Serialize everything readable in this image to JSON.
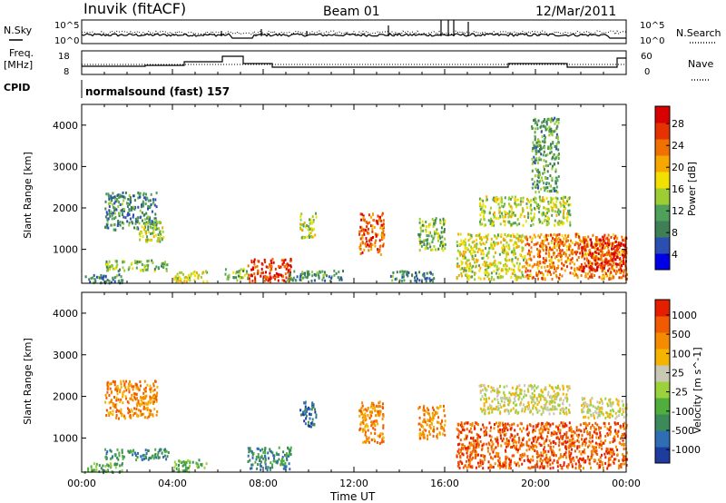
{
  "header": {
    "station": "Inuvik (fitACF)",
    "beam": "Beam 01",
    "date": "12/Mar/2011"
  },
  "summary_panel": {
    "left_labels": {
      "nsky": "N.Sky",
      "freq_line1": "Freq.",
      "freq_line2": "[MHz]",
      "cpid": "CPID"
    },
    "right_labels": {
      "nsearch": "N.Search",
      "nave": "Nave"
    },
    "left_ticks": {
      "noise_hi": "10^5",
      "noise_lo": "10^0",
      "freq_hi": "18",
      "freq_lo": "8"
    },
    "right_ticks": {
      "noise_hi": "10^5",
      "noise_lo": "10^0",
      "nave_hi": "60",
      "nave_lo": "0"
    },
    "cpid_text": "normalsound (fast) 157"
  },
  "chart_data": [
    {
      "type": "heatmap",
      "name": "power",
      "xlabel": "Time UT",
      "ylabel": "Slant Range [km]",
      "x_ticks": [
        "00:00",
        "04:00",
        "08:00",
        "12:00",
        "16:00",
        "20:00",
        "00:00"
      ],
      "x_range_hours": [
        0,
        24
      ],
      "y_ticks": [
        1000,
        2000,
        3000,
        4000
      ],
      "ylim": [
        180,
        4500
      ],
      "colorbar": {
        "label": "Power [dB]",
        "ticks": [
          "28",
          "24",
          "20",
          "16",
          "12",
          "8",
          "4"
        ],
        "range": [
          0,
          30
        ],
        "colors": [
          "#0000e6",
          "#2b4fb0",
          "#3e7f55",
          "#4fa05a",
          "#9ccd33",
          "#f2e000",
          "#f7a800",
          "#f07000",
          "#e63200",
          "#d80000"
        ]
      },
      "regions": [
        {
          "t0": 0.1,
          "t1": 1.8,
          "r0": 200,
          "r1": 420,
          "v": 8
        },
        {
          "t0": 1.0,
          "t1": 3.8,
          "r0": 500,
          "r1": 760,
          "v": 12
        },
        {
          "t0": 1.0,
          "t1": 3.3,
          "r0": 1500,
          "r1": 2400,
          "v": 8
        },
        {
          "t0": 2.5,
          "t1": 3.6,
          "r0": 1200,
          "r1": 1700,
          "v": 14
        },
        {
          "t0": 4.0,
          "t1": 5.5,
          "r0": 220,
          "r1": 500,
          "v": 16
        },
        {
          "t0": 6.3,
          "t1": 7.3,
          "r0": 280,
          "r1": 560,
          "v": 12
        },
        {
          "t0": 7.3,
          "t1": 9.2,
          "r0": 250,
          "r1": 800,
          "v": 26
        },
        {
          "t0": 9.0,
          "t1": 11.5,
          "r0": 260,
          "r1": 520,
          "v": 8
        },
        {
          "t0": 9.6,
          "t1": 10.3,
          "r0": 1300,
          "r1": 1900,
          "v": 14
        },
        {
          "t0": 12.2,
          "t1": 13.3,
          "r0": 900,
          "r1": 1900,
          "v": 24
        },
        {
          "t0": 13.5,
          "t1": 15.5,
          "r0": 250,
          "r1": 500,
          "v": 8
        },
        {
          "t0": 14.8,
          "t1": 16.0,
          "r0": 1000,
          "r1": 1800,
          "v": 12
        },
        {
          "t0": 16.5,
          "t1": 19.5,
          "r0": 300,
          "r1": 1400,
          "v": 16
        },
        {
          "t0": 17.5,
          "t1": 21.5,
          "r0": 1600,
          "r1": 2300,
          "v": 14
        },
        {
          "t0": 19.5,
          "t1": 24.0,
          "r0": 300,
          "r1": 1400,
          "v": 22
        },
        {
          "t0": 22.0,
          "t1": 24.0,
          "r0": 500,
          "r1": 1300,
          "v": 27
        },
        {
          "t0": 19.8,
          "t1": 21.0,
          "r0": 2400,
          "r1": 4200,
          "v": 10
        }
      ]
    },
    {
      "type": "heatmap",
      "name": "velocity",
      "xlabel": "Time UT",
      "ylabel": "Slant Range [km]",
      "x_ticks": [
        "00:00",
        "04:00",
        "08:00",
        "12:00",
        "16:00",
        "20:00",
        "00:00"
      ],
      "x_range_hours": [
        0,
        24
      ],
      "y_ticks": [
        1000,
        2000,
        3000,
        4000
      ],
      "ylim": [
        180,
        4500
      ],
      "colorbar": {
        "label": "Velocity [m s^-1]",
        "ticks": [
          "1000",
          "500",
          "100",
          "25",
          "-25",
          "-100",
          "-500",
          "-1000"
        ],
        "colors": [
          "#1e3ca0",
          "#2f6eb4",
          "#3c8a5a",
          "#4fae3c",
          "#9bd23c",
          "#c8c8b4",
          "#f5b400",
          "#f58c00",
          "#f05a00",
          "#e61e00"
        ]
      },
      "regions": [
        {
          "t0": 0.1,
          "t1": 1.8,
          "r0": 200,
          "r1": 420,
          "v": 3
        },
        {
          "t0": 1.0,
          "t1": 3.8,
          "r0": 500,
          "r1": 760,
          "v": 2
        },
        {
          "t0": 1.0,
          "t1": 3.3,
          "r0": 1500,
          "r1": 2400,
          "v": 7
        },
        {
          "t0": 4.0,
          "t1": 5.5,
          "r0": 220,
          "r1": 500,
          "v": 3
        },
        {
          "t0": 7.3,
          "t1": 9.2,
          "r0": 250,
          "r1": 800,
          "v": 2
        },
        {
          "t0": 9.6,
          "t1": 10.3,
          "r0": 1300,
          "r1": 1900,
          "v": 1
        },
        {
          "t0": 12.2,
          "t1": 13.3,
          "r0": 900,
          "r1": 1900,
          "v": 7
        },
        {
          "t0": 14.8,
          "t1": 16.0,
          "r0": 1000,
          "r1": 1800,
          "v": 7
        },
        {
          "t0": 16.5,
          "t1": 19.5,
          "r0": 300,
          "r1": 1400,
          "v": 8
        },
        {
          "t0": 17.5,
          "t1": 21.5,
          "r0": 1600,
          "r1": 2300,
          "v": 5
        },
        {
          "t0": 19.5,
          "t1": 24.0,
          "r0": 300,
          "r1": 1400,
          "v": 8
        },
        {
          "t0": 22.0,
          "t1": 24.0,
          "r0": 1500,
          "r1": 2000,
          "v": 5
        }
      ]
    }
  ]
}
